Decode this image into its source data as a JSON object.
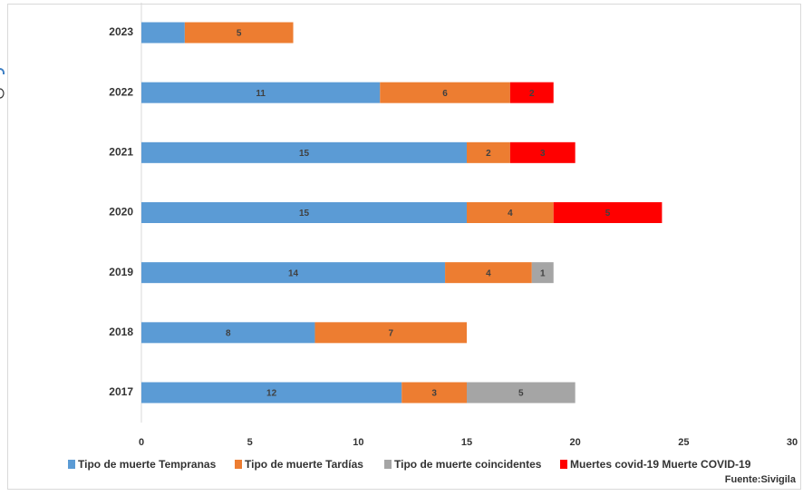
{
  "chart_data": {
    "type": "bar",
    "orientation": "horizontal",
    "stacked": true,
    "categories": [
      "2023",
      "2022",
      "2021",
      "2020",
      "2019",
      "2018",
      "2017"
    ],
    "series": [
      {
        "name": "Tipo de muerte Tempranas",
        "color": "#5b9bd5",
        "values": [
          2,
          11,
          15,
          15,
          14,
          8,
          12
        ],
        "labels": [
          "",
          "11",
          "15",
          "15",
          "14",
          "8",
          "12"
        ]
      },
      {
        "name": "Tipo de muerte Tardías",
        "color": "#ed7d31",
        "values": [
          5,
          6,
          2,
          4,
          4,
          7,
          3
        ],
        "labels": [
          "5",
          "6",
          "2",
          "4",
          "4",
          "7",
          "3"
        ]
      },
      {
        "name": "Tipo de muerte  coincidentes",
        "color": "#a5a5a5",
        "values": [
          0,
          0,
          0,
          0,
          1,
          0,
          5
        ],
        "labels": [
          "",
          "",
          "",
          "",
          "1",
          "",
          "5"
        ]
      },
      {
        "name": "Muertes covid-19 Muerte COVID-19",
        "color": "#ff0000",
        "values": [
          0,
          2,
          3,
          5,
          0,
          0,
          0
        ],
        "labels": [
          "",
          "2",
          "3",
          "5",
          "",
          "",
          ""
        ]
      }
    ],
    "xlim": [
      0,
      30
    ],
    "xticks": [
      "0",
      "5",
      "10",
      "15",
      "20",
      "25",
      "30"
    ],
    "legend_position": "bottom",
    "source_note": "Fuente:Sivigila"
  }
}
